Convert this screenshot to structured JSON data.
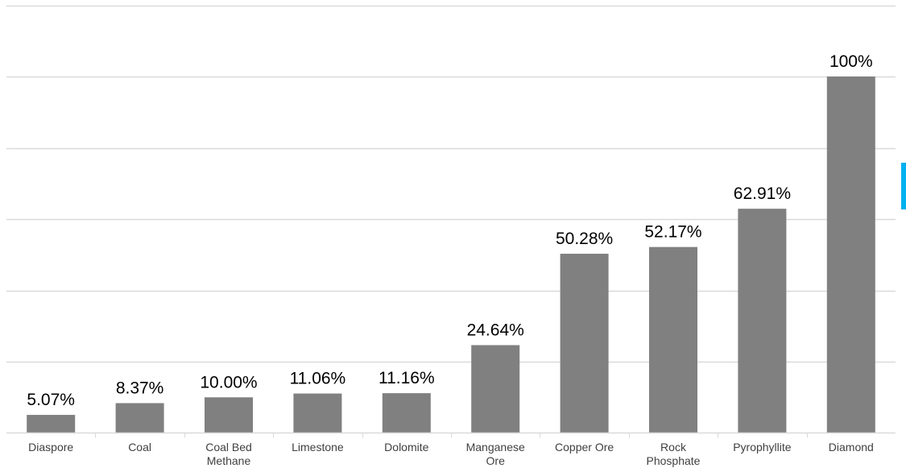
{
  "chart_data": {
    "type": "bar",
    "categories": [
      [
        "Diaspore"
      ],
      [
        "Coal"
      ],
      [
        "Coal Bed",
        "Methane"
      ],
      [
        "Limestone"
      ],
      [
        "Dolomite"
      ],
      [
        "Manganese",
        "Ore"
      ],
      [
        "Copper Ore"
      ],
      [
        "Rock",
        "Phosphate"
      ],
      [
        "Pyrophyllite"
      ],
      [
        "Diamond"
      ]
    ],
    "values": [
      5.07,
      8.37,
      10.0,
      11.06,
      11.16,
      24.64,
      50.28,
      52.17,
      62.91,
      100
    ],
    "data_labels": [
      "5.07%",
      "8.37%",
      "10.00%",
      "11.06%",
      "11.16%",
      "24.64%",
      "50.28%",
      "52.17%",
      "62.91%",
      "100%"
    ],
    "title": "",
    "xlabel": "",
    "ylabel": "",
    "ylim": [
      0,
      120
    ],
    "grid": true,
    "grid_step": 20,
    "bar_color": "#808080",
    "grid_color": "#d9d9d9",
    "accent_color": "#00b0f0"
  }
}
